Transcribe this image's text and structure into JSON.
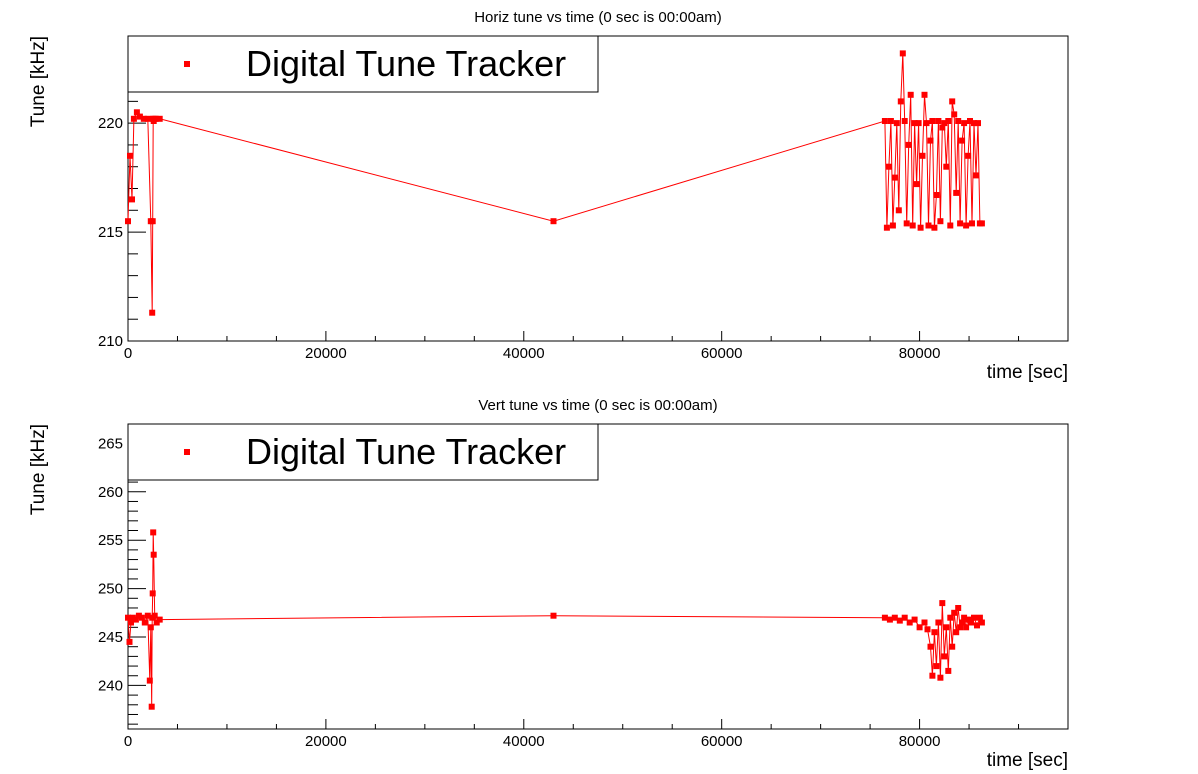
{
  "chart_data": [
    {
      "type": "scatter",
      "title": "Horiz tune vs time (0 sec is 00:00am)",
      "xlabel": "time [sec]",
      "ylabel": "Tune [kHz]",
      "xlim": [
        0,
        95000
      ],
      "ylim": [
        210,
        224
      ],
      "x_ticks": [
        0,
        20000,
        40000,
        60000,
        80000
      ],
      "y_ticks": [
        210,
        215,
        220
      ],
      "grid": false,
      "legend": {
        "position": "top-left",
        "entries": [
          "Digital Tune Tracker"
        ]
      },
      "series": [
        {
          "name": "Digital Tune Tracker",
          "color": "#ff0000",
          "x": [
            0,
            200,
            400,
            600,
            900,
            1200,
            1600,
            2000,
            2300,
            2450,
            2500,
            2550,
            2600,
            2650,
            2800,
            3200,
            43000,
            76500,
            76700,
            76900,
            77100,
            77300,
            77500,
            77700,
            77900,
            78100,
            78300,
            78500,
            78700,
            78900,
            79100,
            79300,
            79500,
            79700,
            79900,
            80100,
            80300,
            80500,
            80700,
            80900,
            81100,
            81300,
            81500,
            81700,
            81900,
            82100,
            82300,
            82500,
            82700,
            82900,
            83100,
            83300,
            83500,
            83700,
            83900,
            84100,
            84300,
            84500,
            84700,
            84900,
            85100,
            85300,
            85500,
            85700,
            85900,
            86100,
            86300
          ],
          "y": [
            215.5,
            218.5,
            216.5,
            220.2,
            220.5,
            220.3,
            220.2,
            220.2,
            215.5,
            211.3,
            215.5,
            220.2,
            220.1,
            220.2,
            220.2,
            220.2,
            215.5,
            220.1,
            215.2,
            218.0,
            220.1,
            215.3,
            217.5,
            220.0,
            216.0,
            221.0,
            223.2,
            220.1,
            215.4,
            219.0,
            221.3,
            215.3,
            220.0,
            217.2,
            220.0,
            215.2,
            218.5,
            221.3,
            220.0,
            215.3,
            219.2,
            220.1,
            215.2,
            216.7,
            220.1,
            215.5,
            219.8,
            220.0,
            218.0,
            220.1,
            215.3,
            221.0,
            220.4,
            216.8,
            220.1,
            215.4,
            219.2,
            220.0,
            215.3,
            218.5,
            220.1,
            215.4,
            220.0,
            217.6,
            220.0,
            215.4,
            215.4
          ]
        }
      ]
    },
    {
      "type": "scatter",
      "title": "Vert tune vs time (0 sec is 00:00am)",
      "xlabel": "time [sec]",
      "ylabel": "Tune [kHz]",
      "xlim": [
        0,
        95000
      ],
      "ylim": [
        235.5,
        267
      ],
      "x_ticks": [
        0,
        20000,
        40000,
        60000,
        80000
      ],
      "y_ticks": [
        240,
        245,
        250,
        255,
        260,
        265
      ],
      "grid": false,
      "legend": {
        "position": "top-left",
        "entries": [
          "Digital Tune Tracker"
        ]
      },
      "series": [
        {
          "name": "Digital Tune Tracker",
          "color": "#ff0000",
          "x": [
            0,
            150,
            300,
            500,
            800,
            1100,
            1400,
            1700,
            2000,
            2200,
            2300,
            2400,
            2450,
            2500,
            2550,
            2600,
            2700,
            2900,
            3200,
            43000,
            76500,
            77000,
            77500,
            78000,
            78500,
            79000,
            79500,
            80000,
            80500,
            80800,
            81100,
            81300,
            81500,
            81700,
            81900,
            82100,
            82300,
            82500,
            82700,
            82900,
            83100,
            83300,
            83500,
            83700,
            83900,
            84100,
            84300,
            84500,
            84700,
            84900,
            85200,
            85500,
            85800,
            86100,
            86300
          ],
          "y": [
            247.0,
            244.5,
            246.5,
            247.0,
            246.8,
            247.2,
            247.0,
            246.5,
            247.2,
            240.5,
            246.0,
            237.8,
            247.0,
            249.5,
            255.8,
            253.5,
            247.2,
            246.5,
            246.8,
            247.2,
            247.0,
            246.8,
            247.0,
            246.7,
            247.0,
            246.5,
            246.8,
            246.0,
            246.5,
            245.8,
            244.0,
            241.0,
            245.5,
            242.0,
            246.5,
            240.8,
            248.5,
            243.0,
            246.0,
            241.5,
            247.0,
            244.0,
            247.5,
            245.5,
            248.0,
            246.0,
            246.5,
            247.0,
            246.0,
            246.8,
            246.5,
            247.0,
            246.2,
            247.0,
            246.5
          ]
        }
      ]
    }
  ]
}
